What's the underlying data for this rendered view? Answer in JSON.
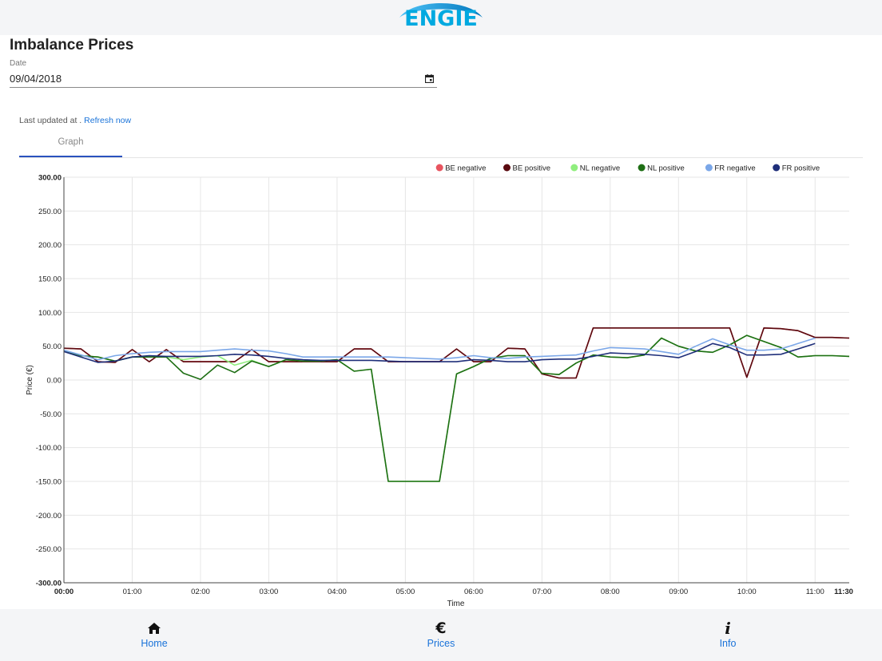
{
  "header": {
    "logo_text": "ENGIE"
  },
  "page": {
    "title": "Imbalance Prices"
  },
  "date": {
    "label": "Date",
    "value": "09/04/2018"
  },
  "status": {
    "last_updated_prefix": "Last updated at .",
    "refresh_label": "Refresh now"
  },
  "tabs": [
    {
      "label": "Graph",
      "active": true
    }
  ],
  "nav": [
    {
      "label": "Home",
      "icon": "home-icon"
    },
    {
      "label": "Prices",
      "icon": "euro-icon"
    },
    {
      "label": "Info",
      "icon": "info-icon"
    }
  ],
  "chart_data": {
    "type": "line",
    "title": "",
    "xlabel": "Time",
    "ylabel": "Price (€)",
    "ylim": [
      -300,
      300
    ],
    "xlim": [
      "00:00",
      "11:30"
    ],
    "yticks": [
      "300.00",
      "250.00",
      "200.00",
      "150.00",
      "100.00",
      "50.00",
      "0.00",
      "-50.00",
      "-100.00",
      "-150.00",
      "-200.00",
      "-250.00",
      "-300.00"
    ],
    "xticks": [
      "00:00",
      "01:00",
      "02:00",
      "03:00",
      "04:00",
      "05:00",
      "06:00",
      "07:00",
      "08:00",
      "09:00",
      "10:00",
      "11:00",
      "11:30"
    ],
    "grid": true,
    "legend_position": "top-right",
    "series": [
      {
        "name": "BE negative",
        "color": "#e8545f",
        "x": [
          "00:00",
          "00:15",
          "00:30",
          "00:45",
          "01:00",
          "01:15",
          "01:30",
          "01:45",
          "02:00",
          "02:15",
          "02:30",
          "02:45",
          "03:00",
          "03:15",
          "03:30",
          "03:45",
          "04:00",
          "04:15",
          "04:30",
          "04:45",
          "05:00",
          "05:15",
          "05:30",
          "05:45",
          "06:00",
          "06:15",
          "06:30",
          "06:45",
          "07:00",
          "07:15",
          "07:30",
          "07:45",
          "08:00",
          "08:15",
          "08:30",
          "08:45",
          "09:00",
          "09:15",
          "09:30",
          "09:45",
          "10:00",
          "10:15",
          "10:30",
          "10:45",
          "11:00",
          "11:15",
          "11:30"
        ],
        "values": [
          47,
          46,
          27,
          26,
          45,
          27,
          45,
          27,
          27,
          27,
          27,
          45,
          27,
          27,
          27,
          27,
          27,
          46,
          46,
          27,
          27,
          27,
          27,
          46,
          27,
          27,
          47,
          46,
          9,
          3,
          3,
          77,
          77,
          77,
          77,
          77,
          77,
          77,
          77,
          77,
          4,
          77,
          76,
          73,
          63,
          63,
          62
        ]
      },
      {
        "name": "BE positive",
        "color": "#5a0a10",
        "x": [
          "00:00",
          "00:15",
          "00:30",
          "00:45",
          "01:00",
          "01:15",
          "01:30",
          "01:45",
          "02:00",
          "02:15",
          "02:30",
          "02:45",
          "03:00",
          "03:15",
          "03:30",
          "03:45",
          "04:00",
          "04:15",
          "04:30",
          "04:45",
          "05:00",
          "05:15",
          "05:30",
          "05:45",
          "06:00",
          "06:15",
          "06:30",
          "06:45",
          "07:00",
          "07:15",
          "07:30",
          "07:45",
          "08:00",
          "08:15",
          "08:30",
          "08:45",
          "09:00",
          "09:15",
          "09:30",
          "09:45",
          "10:00",
          "10:15",
          "10:30",
          "10:45",
          "11:00",
          "11:15",
          "11:30"
        ],
        "values": [
          47,
          46,
          27,
          26,
          45,
          27,
          45,
          27,
          27,
          27,
          27,
          45,
          27,
          27,
          27,
          27,
          27,
          46,
          46,
          27,
          27,
          27,
          27,
          46,
          27,
          27,
          47,
          46,
          9,
          3,
          3,
          77,
          77,
          77,
          77,
          77,
          77,
          77,
          77,
          77,
          4,
          77,
          76,
          73,
          63,
          63,
          62
        ]
      },
      {
        "name": "NL negative",
        "color": "#90ee7e",
        "x": [
          "00:00",
          "00:15",
          "00:30",
          "00:45",
          "01:00",
          "01:15",
          "01:30",
          "01:45",
          "02:00",
          "02:15",
          "02:30",
          "02:45",
          "03:00",
          "03:15",
          "03:30",
          "03:45",
          "04:00",
          "04:15",
          "04:30",
          "04:45",
          "05:00",
          "05:15",
          "05:30",
          "05:45",
          "06:00",
          "06:15",
          "06:30",
          "06:45",
          "07:00",
          "07:15",
          "07:30",
          "07:45",
          "08:00",
          "08:15",
          "08:30",
          "08:45",
          "09:00",
          "09:15",
          "09:30",
          "09:45",
          "10:00",
          "10:15",
          "10:30",
          "10:45",
          "11:00",
          "11:15",
          "11:30"
        ],
        "values": [
          43,
          36,
          34,
          28,
          34,
          34,
          34,
          30,
          34,
          36,
          22,
          29,
          20,
          30,
          28,
          28,
          30,
          13,
          16,
          -150,
          -150,
          -150,
          -150,
          9,
          20,
          32,
          36,
          36,
          10,
          8,
          25,
          37,
          34,
          33,
          37,
          62,
          50,
          43,
          41,
          52,
          66,
          57,
          48,
          34,
          36,
          36,
          35
        ]
      },
      {
        "name": "NL positive",
        "color": "#1e6e14",
        "x": [
          "00:00",
          "00:15",
          "00:30",
          "00:45",
          "01:00",
          "01:15",
          "01:30",
          "01:45",
          "02:00",
          "02:15",
          "02:30",
          "02:45",
          "03:00",
          "03:15",
          "03:30",
          "03:45",
          "04:00",
          "04:15",
          "04:30",
          "04:45",
          "05:00",
          "05:15",
          "05:30",
          "05:45",
          "06:00",
          "06:15",
          "06:30",
          "06:45",
          "07:00",
          "07:15",
          "07:30",
          "07:45",
          "08:00",
          "08:15",
          "08:30",
          "08:45",
          "09:00",
          "09:15",
          "09:30",
          "09:45",
          "10:00",
          "10:15",
          "10:30",
          "10:45",
          "11:00",
          "11:15",
          "11:30"
        ],
        "values": [
          43,
          36,
          34,
          28,
          34,
          34,
          34,
          10,
          1,
          22,
          11,
          28,
          20,
          30,
          28,
          28,
          30,
          13,
          16,
          -150,
          -150,
          -150,
          -150,
          9,
          20,
          32,
          36,
          36,
          10,
          8,
          25,
          37,
          34,
          33,
          37,
          62,
          50,
          43,
          41,
          52,
          66,
          57,
          48,
          34,
          36,
          36,
          35
        ]
      },
      {
        "name": "FR negative",
        "color": "#7ba7e8",
        "x": [
          "00:00",
          "00:15",
          "00:30",
          "00:45",
          "01:00",
          "01:15",
          "01:30",
          "01:45",
          "02:00",
          "02:15",
          "02:30",
          "02:45",
          "03:00",
          "03:15",
          "03:30",
          "03:45",
          "04:00",
          "04:15",
          "04:30",
          "04:45",
          "05:00",
          "05:15",
          "05:30",
          "05:45",
          "06:00",
          "06:15",
          "06:30",
          "06:45",
          "07:00",
          "07:15",
          "07:30",
          "07:45",
          "08:00",
          "08:15",
          "08:30",
          "08:45",
          "09:00",
          "09:15",
          "09:30",
          "09:45",
          "10:00",
          "10:15",
          "10:30",
          "10:45",
          "11:00"
        ],
        "values": [
          44,
          37,
          30,
          36,
          39,
          41,
          42,
          42,
          42,
          44,
          46,
          44,
          43,
          39,
          34,
          34,
          34,
          34,
          34,
          34,
          33,
          32,
          31,
          33,
          36,
          33,
          32,
          34,
          35,
          36,
          37,
          43,
          48,
          47,
          46,
          42,
          38,
          50,
          61,
          52,
          44,
          44,
          46,
          54,
          62
        ]
      },
      {
        "name": "FR positive",
        "color": "#1f2f7a",
        "x": [
          "00:00",
          "00:15",
          "00:30",
          "00:45",
          "01:00",
          "01:15",
          "01:30",
          "01:45",
          "02:00",
          "02:15",
          "02:30",
          "02:45",
          "03:00",
          "03:15",
          "03:30",
          "03:45",
          "04:00",
          "04:15",
          "04:30",
          "04:45",
          "05:00",
          "05:15",
          "05:30",
          "05:45",
          "06:00",
          "06:15",
          "06:30",
          "06:45",
          "07:00",
          "07:15",
          "07:30",
          "07:45",
          "08:00",
          "08:15",
          "08:30",
          "08:45",
          "09:00",
          "09:15",
          "09:30",
          "09:45",
          "10:00",
          "10:15",
          "10:30",
          "10:45",
          "11:00"
        ],
        "values": [
          42,
          34,
          26,
          28,
          34,
          36,
          35,
          35,
          35,
          36,
          38,
          37,
          35,
          32,
          30,
          29,
          29,
          29,
          29,
          28,
          27,
          27,
          27,
          27,
          30,
          29,
          27,
          27,
          30,
          31,
          31,
          35,
          40,
          39,
          38,
          36,
          33,
          42,
          54,
          48,
          37,
          37,
          38,
          46,
          54
        ]
      }
    ]
  }
}
